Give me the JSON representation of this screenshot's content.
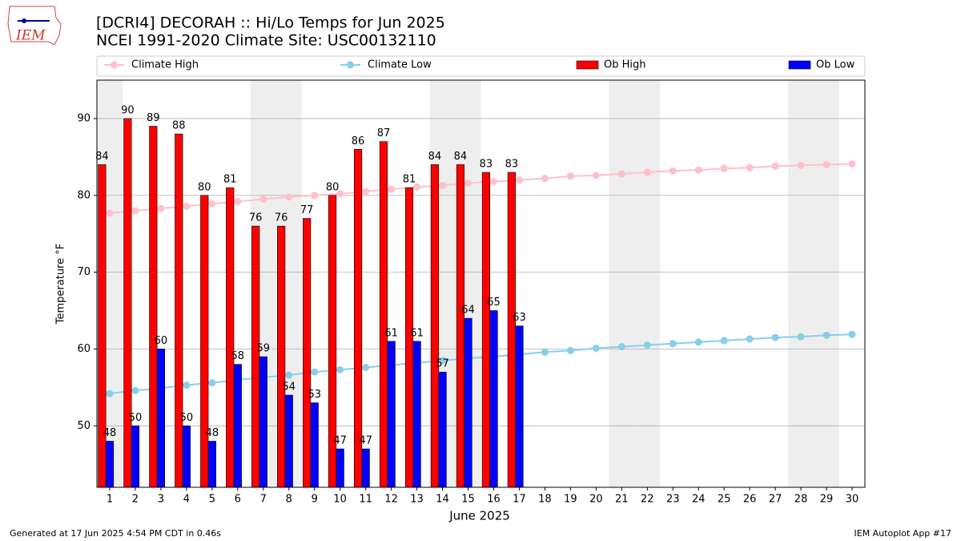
{
  "chart_data": {
    "type": "bar",
    "title": "[DCRI4] DECORAH :: Hi/Lo Temps for Jun 2025",
    "subtitle": "NCEI 1991-2020 Climate Site: USC00132110",
    "xlabel": "June 2025",
    "ylabel": "Temperature °F",
    "x": [
      1,
      2,
      3,
      4,
      5,
      6,
      7,
      8,
      9,
      10,
      11,
      12,
      13,
      14,
      15,
      16,
      17,
      18,
      19,
      20,
      21,
      22,
      23,
      24,
      25,
      26,
      27,
      28,
      29,
      30
    ],
    "xlim": [
      0.5,
      30.5
    ],
    "xticks": [
      1,
      2,
      3,
      4,
      5,
      6,
      7,
      8,
      9,
      10,
      11,
      12,
      13,
      14,
      15,
      16,
      17,
      18,
      19,
      20,
      21,
      22,
      23,
      24,
      25,
      26,
      27,
      28,
      29,
      30
    ],
    "ylim": [
      42,
      95
    ],
    "yticks": [
      50,
      60,
      70,
      80,
      90
    ],
    "grid": true,
    "weekends": [
      1,
      7,
      8,
      14,
      15,
      21,
      22,
      28,
      29
    ],
    "series": [
      {
        "name": "Climate High",
        "kind": "line",
        "color": "#ffc0cb",
        "values": [
          77.7,
          78.0,
          78.3,
          78.6,
          78.9,
          79.2,
          79.5,
          79.8,
          80.0,
          80.2,
          80.5,
          80.8,
          81.1,
          81.3,
          81.6,
          81.8,
          82.0,
          82.2,
          82.5,
          82.6,
          82.8,
          83.0,
          83.2,
          83.3,
          83.5,
          83.6,
          83.8,
          83.9,
          84.0,
          84.1
        ]
      },
      {
        "name": "Climate Low",
        "kind": "line",
        "color": "#87ceeb",
        "values": [
          54.2,
          54.6,
          54.9,
          55.3,
          55.6,
          56.0,
          56.3,
          56.6,
          57.0,
          57.3,
          57.6,
          57.9,
          58.2,
          58.5,
          58.8,
          59.0,
          59.3,
          59.6,
          59.8,
          60.1,
          60.3,
          60.5,
          60.7,
          60.9,
          61.1,
          61.3,
          61.5,
          61.6,
          61.8,
          61.9
        ]
      },
      {
        "name": "Ob High",
        "kind": "bar",
        "color": "#ff0000",
        "values": [
          84,
          90,
          89,
          88,
          80,
          81,
          76,
          76,
          77,
          80,
          86,
          87,
          81,
          84,
          84,
          83,
          83,
          null,
          null,
          null,
          null,
          null,
          null,
          null,
          null,
          null,
          null,
          null,
          null,
          null
        ]
      },
      {
        "name": "Ob Low",
        "kind": "bar",
        "color": "#0000ff",
        "values": [
          48,
          50,
          60,
          50,
          48,
          58,
          59,
          54,
          53,
          47,
          47,
          61,
          61,
          57,
          64,
          65,
          63,
          null,
          null,
          null,
          null,
          null,
          null,
          null,
          null,
          null,
          null,
          null,
          null,
          null
        ]
      }
    ]
  },
  "logo": "IEM",
  "footer": {
    "left": "Generated at 17 Jun 2025 4:54 PM CDT in 0.46s",
    "right": "IEM Autoplot App #17"
  }
}
